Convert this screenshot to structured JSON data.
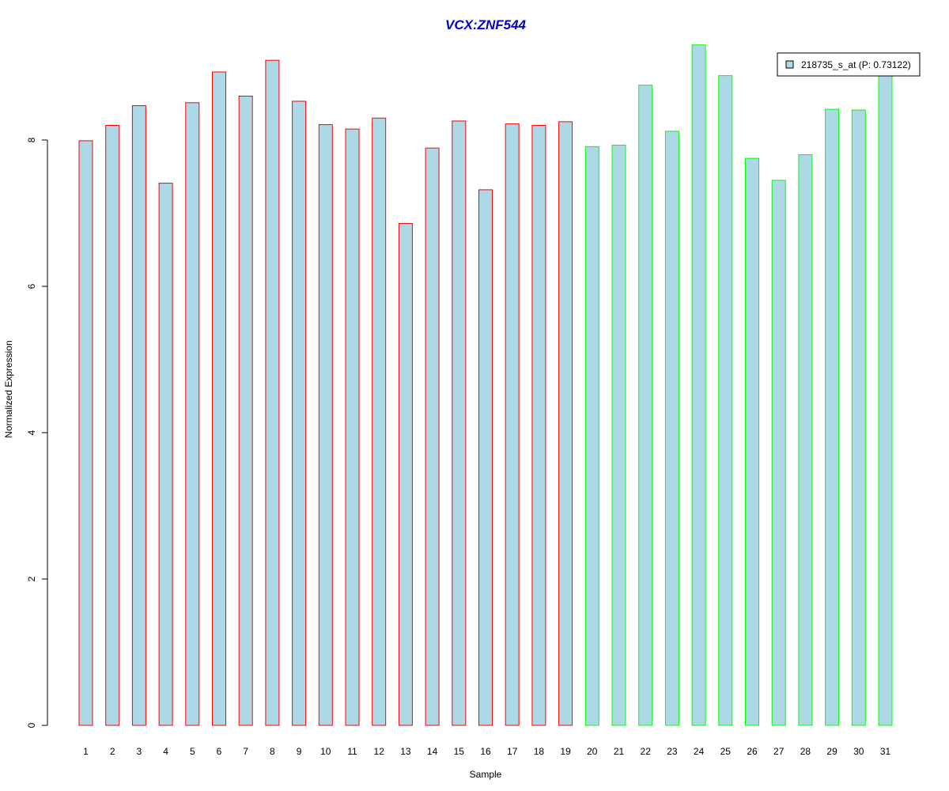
{
  "chart_data": {
    "type": "bar",
    "title": "VCX:ZNF544",
    "xlabel": "Sample",
    "ylabel": "Normalized Expression",
    "categories": [
      "1",
      "2",
      "3",
      "4",
      "5",
      "6",
      "7",
      "8",
      "9",
      "10",
      "11",
      "12",
      "13",
      "14",
      "15",
      "16",
      "17",
      "18",
      "19",
      "20",
      "21",
      "22",
      "23",
      "24",
      "25",
      "26",
      "27",
      "28",
      "29",
      "30",
      "31"
    ],
    "series": [
      {
        "name": "218735_s_at (P: 0.73122)",
        "values": [
          7.99,
          8.2,
          8.47,
          7.41,
          8.51,
          8.93,
          8.6,
          9.09,
          8.53,
          8.21,
          8.15,
          8.3,
          6.86,
          7.89,
          8.26,
          7.32,
          8.22,
          8.2,
          8.25,
          7.91,
          7.93,
          8.75,
          8.12,
          9.3,
          8.88,
          7.75,
          7.45,
          7.8,
          8.42,
          8.41,
          8.97
        ]
      }
    ],
    "groups": [
      {
        "from": 1,
        "to": 19,
        "border_color": "#ff0000"
      },
      {
        "from": 20,
        "to": 31,
        "border_color": "#00ff00"
      }
    ],
    "yticks": [
      0,
      2,
      4,
      6,
      8
    ],
    "ylim": [
      0,
      9.4
    ],
    "bar_fill": "#add8e6",
    "title_color": "#0000cd",
    "legend_position": "top-right",
    "grid": false
  }
}
